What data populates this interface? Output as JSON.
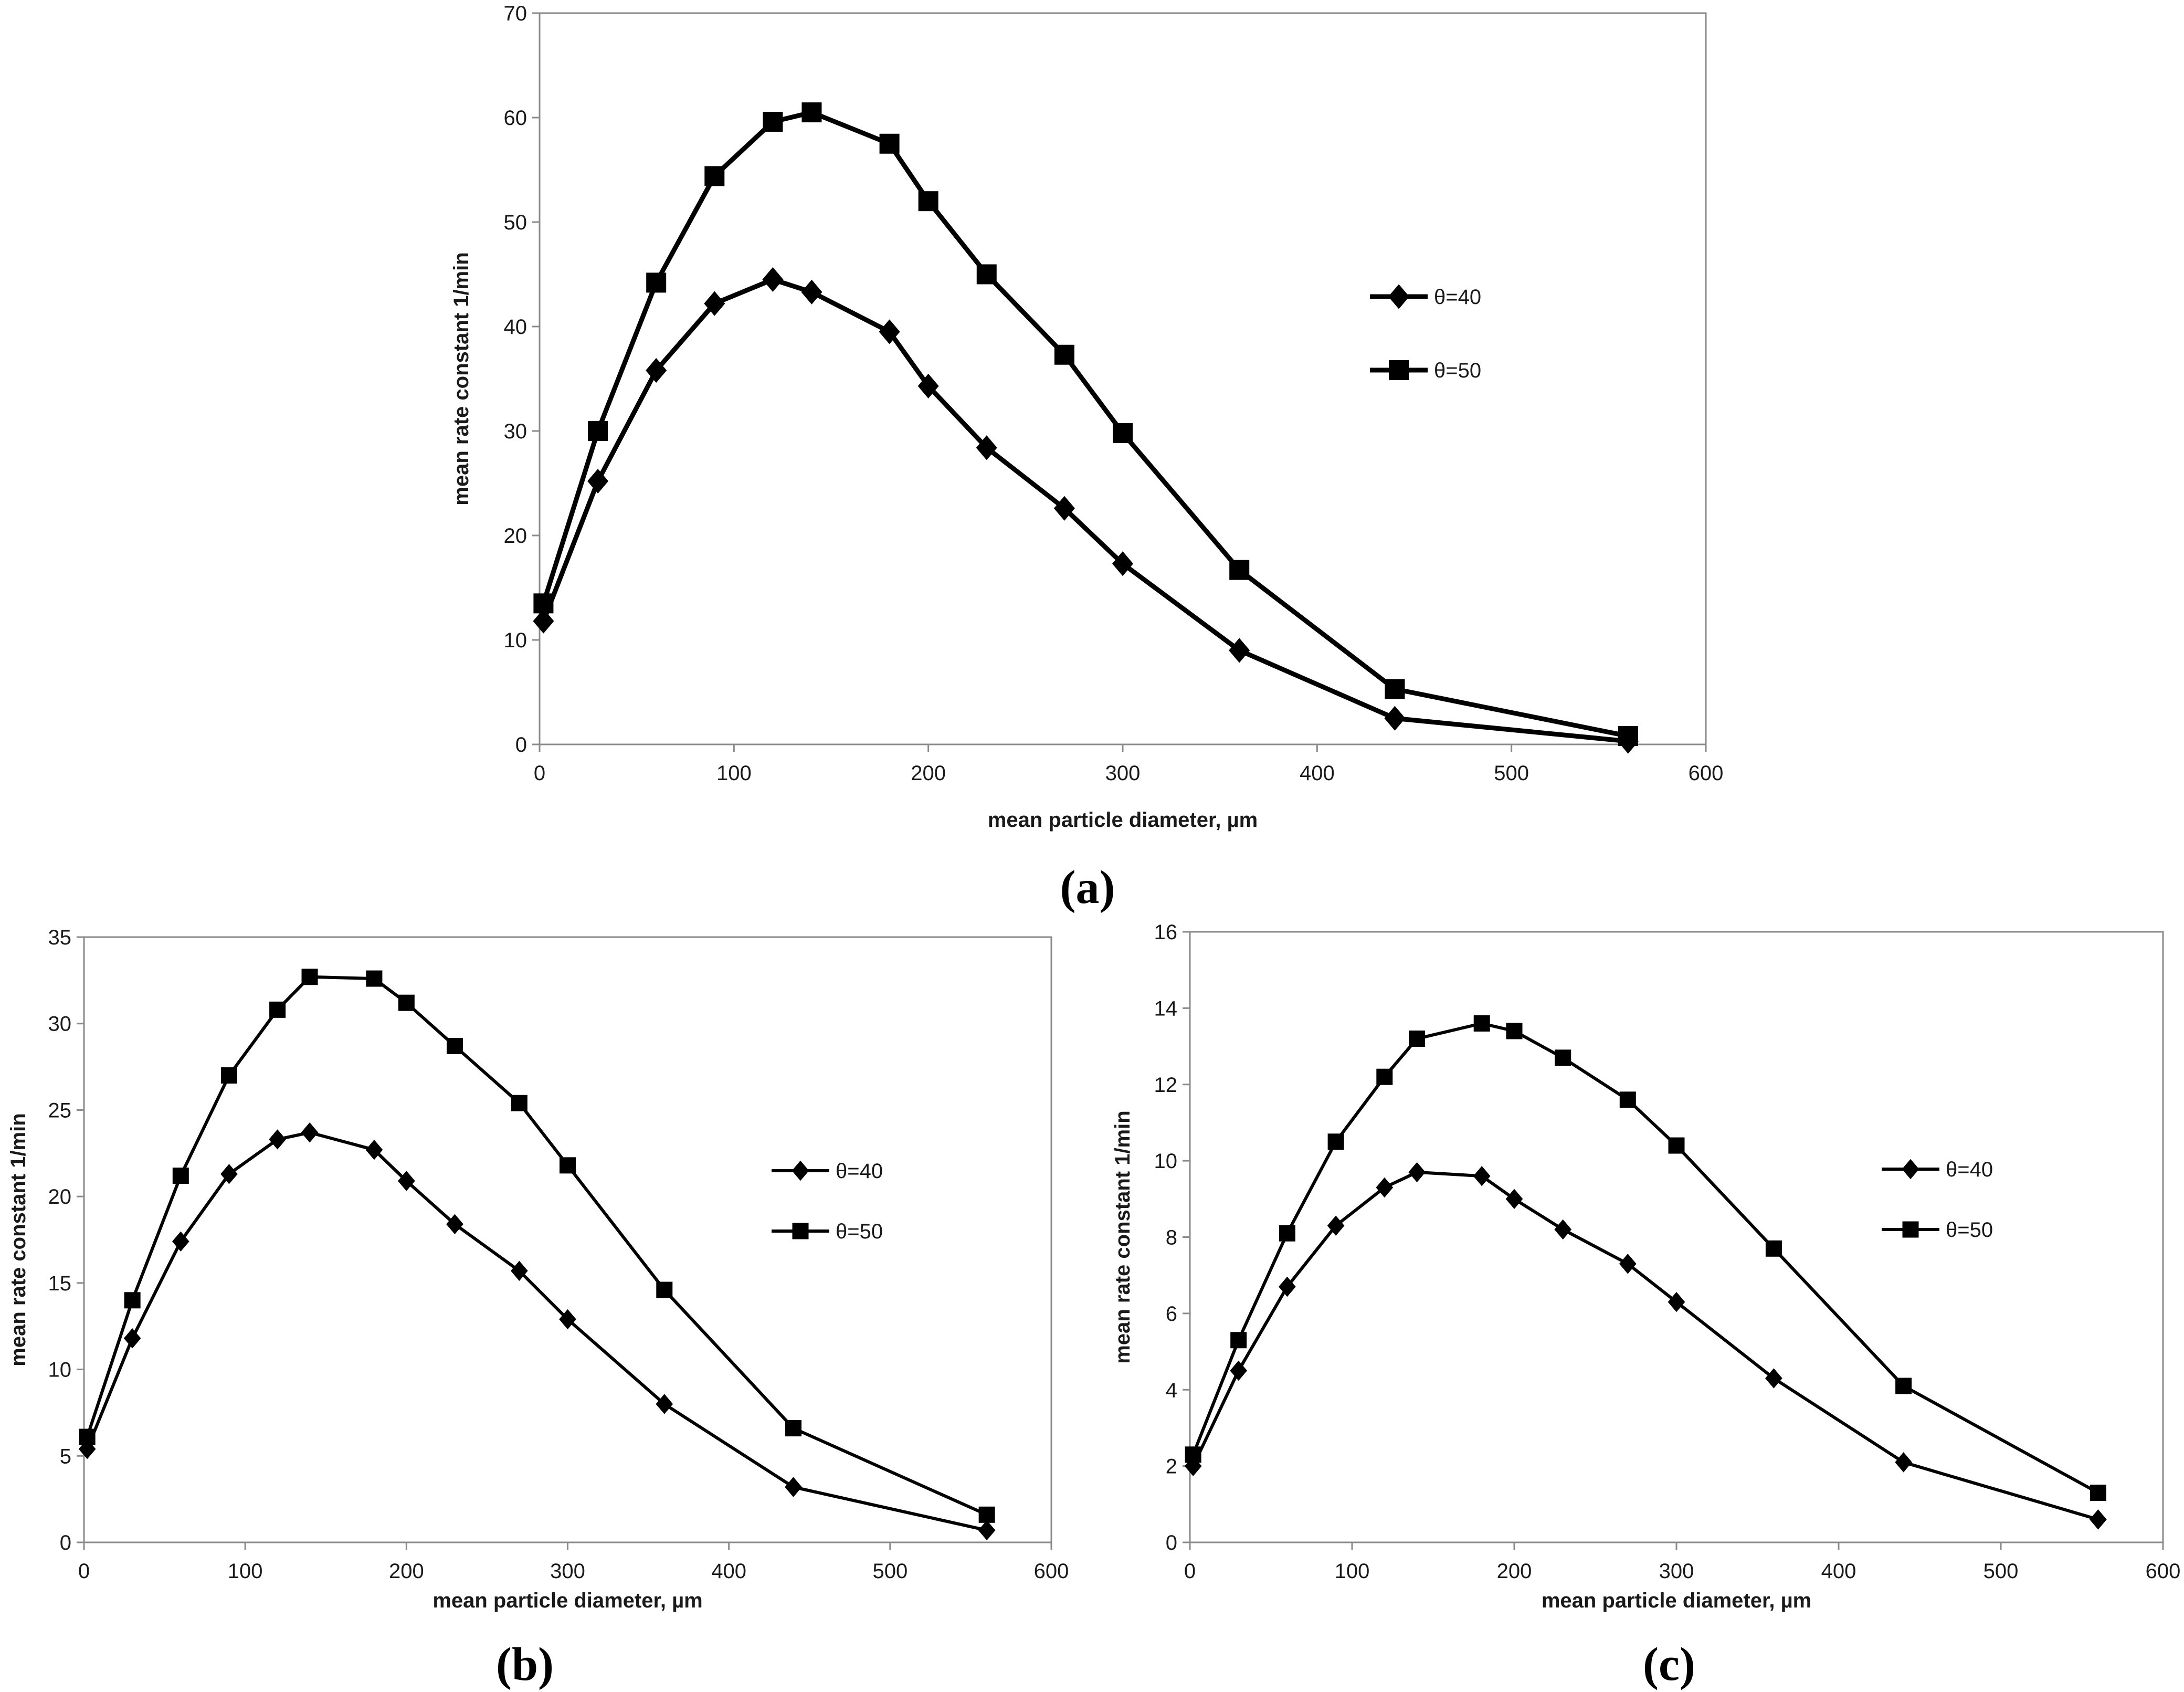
{
  "chart_data": [
    {
      "type": "line",
      "panel_label": "(a)",
      "xlabel": "mean particle diameter,  µm",
      "ylabel": "mean rate constant 1/min",
      "xlim": [
        0,
        600
      ],
      "ylim": [
        0,
        70
      ],
      "xticks": [
        0,
        100,
        200,
        300,
        400,
        500,
        600
      ],
      "yticks": [
        0,
        10,
        20,
        30,
        40,
        50,
        60,
        70
      ],
      "grid": false,
      "legend_position": "right",
      "x": [
        2,
        30,
        60,
        90,
        120,
        140,
        180,
        200,
        230,
        270,
        300,
        360,
        440,
        560
      ],
      "series": [
        {
          "name": "θ=40",
          "marker": "diamond",
          "values": [
            11.8,
            25.2,
            35.8,
            42.2,
            44.5,
            43.3,
            39.5,
            34.3,
            28.4,
            22.6,
            17.3,
            9.0,
            2.5,
            0.3
          ]
        },
        {
          "name": "θ=50",
          "marker": "square",
          "values": [
            13.5,
            30.0,
            44.2,
            54.4,
            59.6,
            60.5,
            57.5,
            52.0,
            45.0,
            37.3,
            29.8,
            16.7,
            5.3,
            0.8
          ]
        }
      ]
    },
    {
      "type": "line",
      "panel_label": "(b)",
      "xlabel": "mean particle diameter,  µm",
      "ylabel": "mean rate constant 1/min",
      "xlim": [
        0,
        600
      ],
      "ylim": [
        0,
        35
      ],
      "xticks": [
        0,
        100,
        200,
        300,
        400,
        500,
        600
      ],
      "yticks": [
        0,
        5,
        10,
        15,
        20,
        25,
        30,
        35
      ],
      "grid": false,
      "legend_position": "right",
      "x": [
        2,
        30,
        60,
        90,
        120,
        140,
        180,
        200,
        230,
        270,
        300,
        360,
        440,
        560
      ],
      "series": [
        {
          "name": "θ=40",
          "marker": "diamond",
          "values": [
            5.4,
            11.8,
            17.4,
            21.3,
            23.3,
            23.7,
            22.7,
            20.9,
            18.4,
            15.7,
            12.9,
            8.0,
            3.2,
            0.7
          ]
        },
        {
          "name": "θ=50",
          "marker": "square",
          "values": [
            6.1,
            14.0,
            21.2,
            27.0,
            30.8,
            32.7,
            32.6,
            31.2,
            28.7,
            25.4,
            21.8,
            14.6,
            6.6,
            1.6
          ]
        }
      ]
    },
    {
      "type": "line",
      "panel_label": "(c)",
      "xlabel": "mean particle diameter,  µm",
      "ylabel": "mean rate constant 1/min",
      "xlim": [
        0,
        600
      ],
      "ylim": [
        0,
        16
      ],
      "xticks": [
        0,
        100,
        200,
        300,
        400,
        500,
        600
      ],
      "yticks": [
        0,
        2,
        4,
        6,
        8,
        10,
        12,
        14,
        16
      ],
      "grid": false,
      "legend_position": "right",
      "x": [
        2,
        30,
        60,
        90,
        120,
        140,
        180,
        200,
        230,
        270,
        300,
        360,
        440,
        560
      ],
      "series": [
        {
          "name": "θ=40",
          "marker": "diamond",
          "values": [
            2.0,
            4.5,
            6.7,
            8.3,
            9.3,
            9.7,
            9.6,
            9.0,
            8.2,
            7.3,
            6.3,
            4.3,
            2.1,
            0.6
          ]
        },
        {
          "name": "θ=50",
          "marker": "square",
          "values": [
            2.3,
            5.3,
            8.1,
            10.5,
            12.2,
            13.2,
            13.6,
            13.4,
            12.7,
            11.6,
            10.4,
            7.7,
            4.1,
            1.3
          ]
        }
      ]
    }
  ],
  "colors": {
    "series": "#000000",
    "frame": "#8a8a8a",
    "text": "#1a1a1a"
  }
}
